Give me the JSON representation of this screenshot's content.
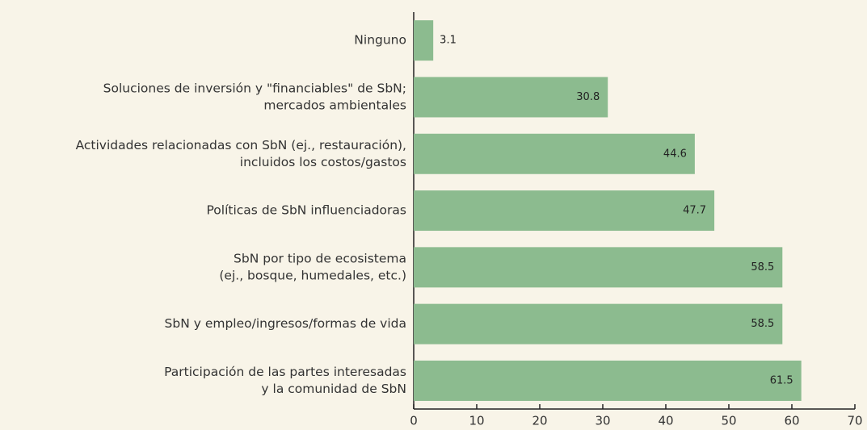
{
  "chart_data": {
    "type": "bar",
    "orientation": "horizontal",
    "categories": [
      [
        "Ninguno"
      ],
      [
        "Soluciones de inversión y \"financiables\" de SbN;",
        "mercados ambientales"
      ],
      [
        "Actividades relacionadas con SbN (ej., restauración),",
        "incluidos los costos/gastos"
      ],
      [
        "Políticas de SbN influenciadoras"
      ],
      [
        "SbN por tipo de ecosistema",
        "(ej., bosque, humedales, etc.)"
      ],
      [
        "SbN y empleo/ingresos/formas de vida"
      ],
      [
        "Participación de las partes interesadas",
        "y la comunidad de SbN"
      ]
    ],
    "values": [
      3.1,
      30.8,
      44.6,
      47.7,
      58.5,
      58.5,
      61.5
    ],
    "color": "#8cbb8f",
    "xlim": [
      0,
      70
    ],
    "xticks": [
      0,
      10,
      20,
      30,
      40,
      50,
      60,
      70
    ]
  }
}
